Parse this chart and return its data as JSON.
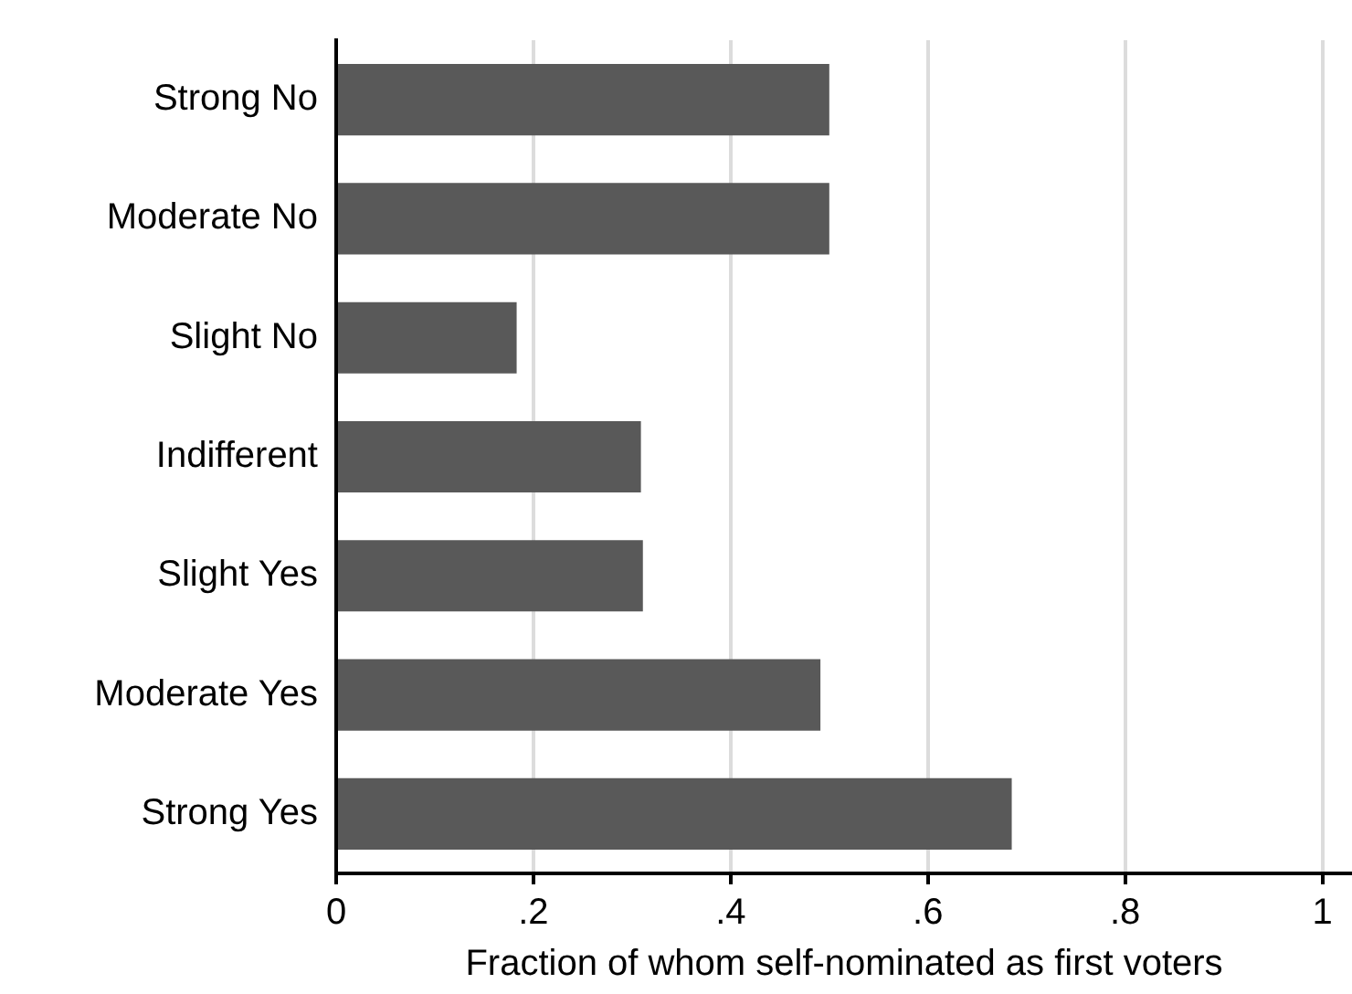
{
  "chart_data": {
    "type": "bar",
    "orientation": "horizontal",
    "xlabel": "Fraction of whom self-nominated as first voters",
    "categories": [
      "Strong No",
      "Moderate No",
      "Slight No",
      "Indifferent",
      "Slight Yes",
      "Moderate Yes",
      "Strong Yes"
    ],
    "values": [
      0.5,
      0.5,
      0.183,
      0.309,
      0.311,
      0.491,
      0.685
    ],
    "color": "#595959",
    "xlim": [
      0,
      1.03
    ],
    "xticks": [
      0,
      {
        "value": 0.2,
        "label": ".2"
      },
      {
        "value": 0.4,
        "label": ".4"
      },
      {
        "value": 0.6,
        "label": ".6"
      },
      {
        "value": 0.8,
        "label": ".8"
      },
      1
    ],
    "grid": "x",
    "legend": false
  }
}
